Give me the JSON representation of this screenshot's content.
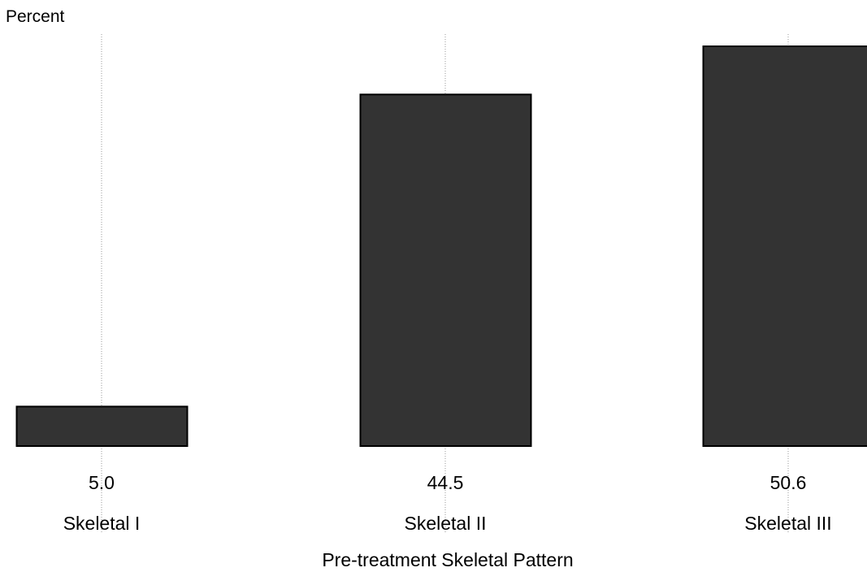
{
  "chart_data": {
    "type": "bar",
    "ylabel": "Percent",
    "xlabel": "Pre-treatment Skeletal Pattern",
    "categories": [
      "Skeletal I",
      "Skeletal II",
      "Skeletal III"
    ],
    "values": [
      5.0,
      44.5,
      50.6
    ],
    "value_labels": [
      "5.0",
      "44.5",
      "50.6"
    ],
    "ylim": [
      0,
      50.6
    ],
    "grid": "vertical dotted lines at each category",
    "bar_color": "#333333",
    "bar_edge_color": "#000000",
    "grid_color": "#999999"
  }
}
